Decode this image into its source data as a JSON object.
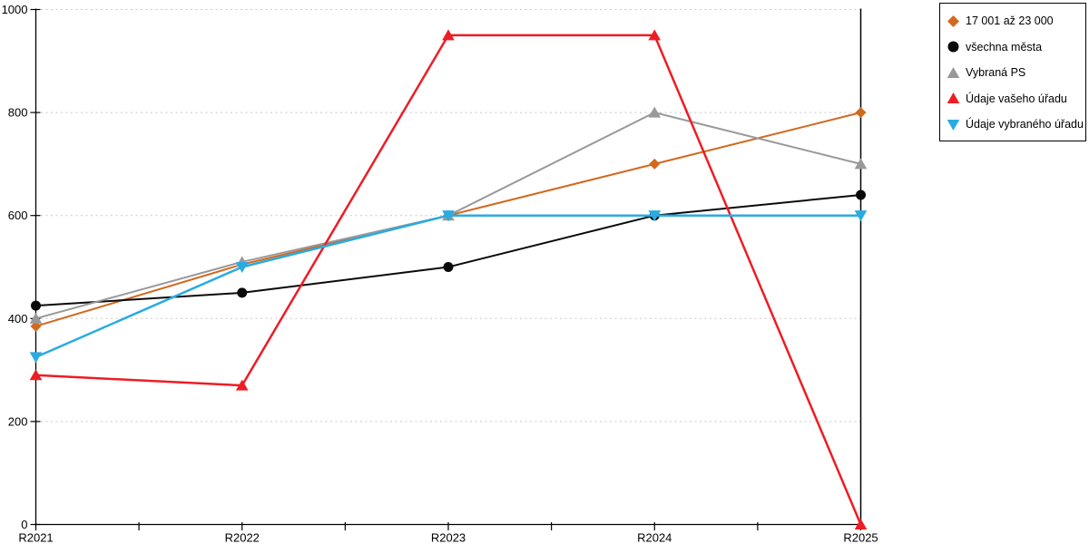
{
  "chart_data": {
    "type": "line",
    "title": "",
    "xlabel": "",
    "ylabel": "",
    "categories": [
      "R2021",
      "R2022",
      "R2023",
      "R2024",
      "R2025"
    ],
    "yticks": [
      "0",
      "200",
      "400",
      "600",
      "800",
      "1000"
    ],
    "ylim": [
      0,
      1000
    ],
    "grid": "horizontal-dotted",
    "legend_position": "top-right",
    "background_color": "#ffffff",
    "axis_color": "#000000",
    "gridline_color": "#c9c9c9",
    "series": [
      {
        "name": "17 001 až 23 000",
        "color": "#d2691e",
        "marker": "diamond",
        "values": [
          385,
          505,
          600,
          700,
          800
        ]
      },
      {
        "name": "všechna města",
        "color": "#0a0a0a",
        "marker": "circle",
        "values": [
          425,
          450,
          500,
          600,
          640
        ]
      },
      {
        "name": "Vybraná PS",
        "color": "#999999",
        "marker": "triangle-up",
        "values": [
          400,
          510,
          600,
          800,
          700
        ]
      },
      {
        "name": "Údaje vašeho úřadu",
        "color": "#ee1c25",
        "marker": "triangle-up",
        "values": [
          290,
          270,
          950,
          950,
          0
        ]
      },
      {
        "name": "Údaje vybraného úřadu",
        "color": "#29abe2",
        "marker": "triangle-down",
        "values": [
          325,
          500,
          600,
          600,
          600
        ]
      }
    ]
  }
}
